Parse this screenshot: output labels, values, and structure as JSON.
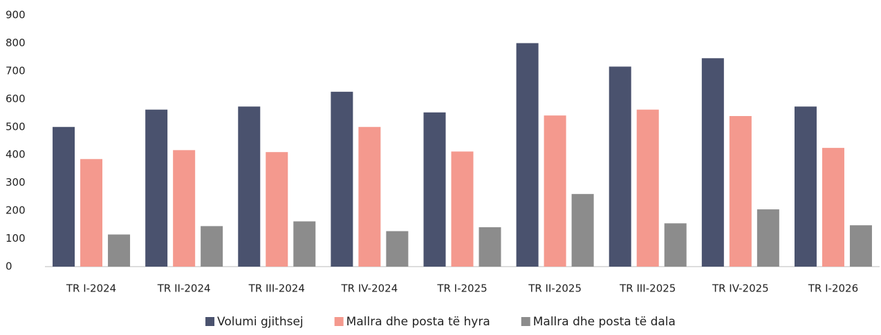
{
  "chart_data": {
    "type": "bar",
    "categories": [
      "TR I-2024",
      "TR II-2024",
      "TR III-2024",
      "TR IV-2024",
      "TR I-2025",
      "TR II-2025",
      "TR III-2025",
      "TR IV-2025",
      "TR I-2026"
    ],
    "series": [
      {
        "name": "Volumi gjithsej",
        "color": "#4a526e",
        "values": [
          500,
          562,
          573,
          626,
          552,
          800,
          716,
          746,
          573
        ]
      },
      {
        "name": "Mallra dhe posta të hyra",
        "color": "#f4998e",
        "values": [
          385,
          417,
          410,
          500,
          412,
          541,
          562,
          539,
          425
        ]
      },
      {
        "name": "Mallra dhe posta të dala",
        "color": "#8c8c8c",
        "values": [
          115,
          145,
          162,
          127,
          141,
          260,
          155,
          205,
          148
        ]
      }
    ],
    "ylim": [
      0,
      900
    ],
    "yticks": [
      0,
      100,
      200,
      300,
      400,
      500,
      600,
      700,
      800,
      900
    ],
    "grid": false,
    "legend": "bottom"
  }
}
